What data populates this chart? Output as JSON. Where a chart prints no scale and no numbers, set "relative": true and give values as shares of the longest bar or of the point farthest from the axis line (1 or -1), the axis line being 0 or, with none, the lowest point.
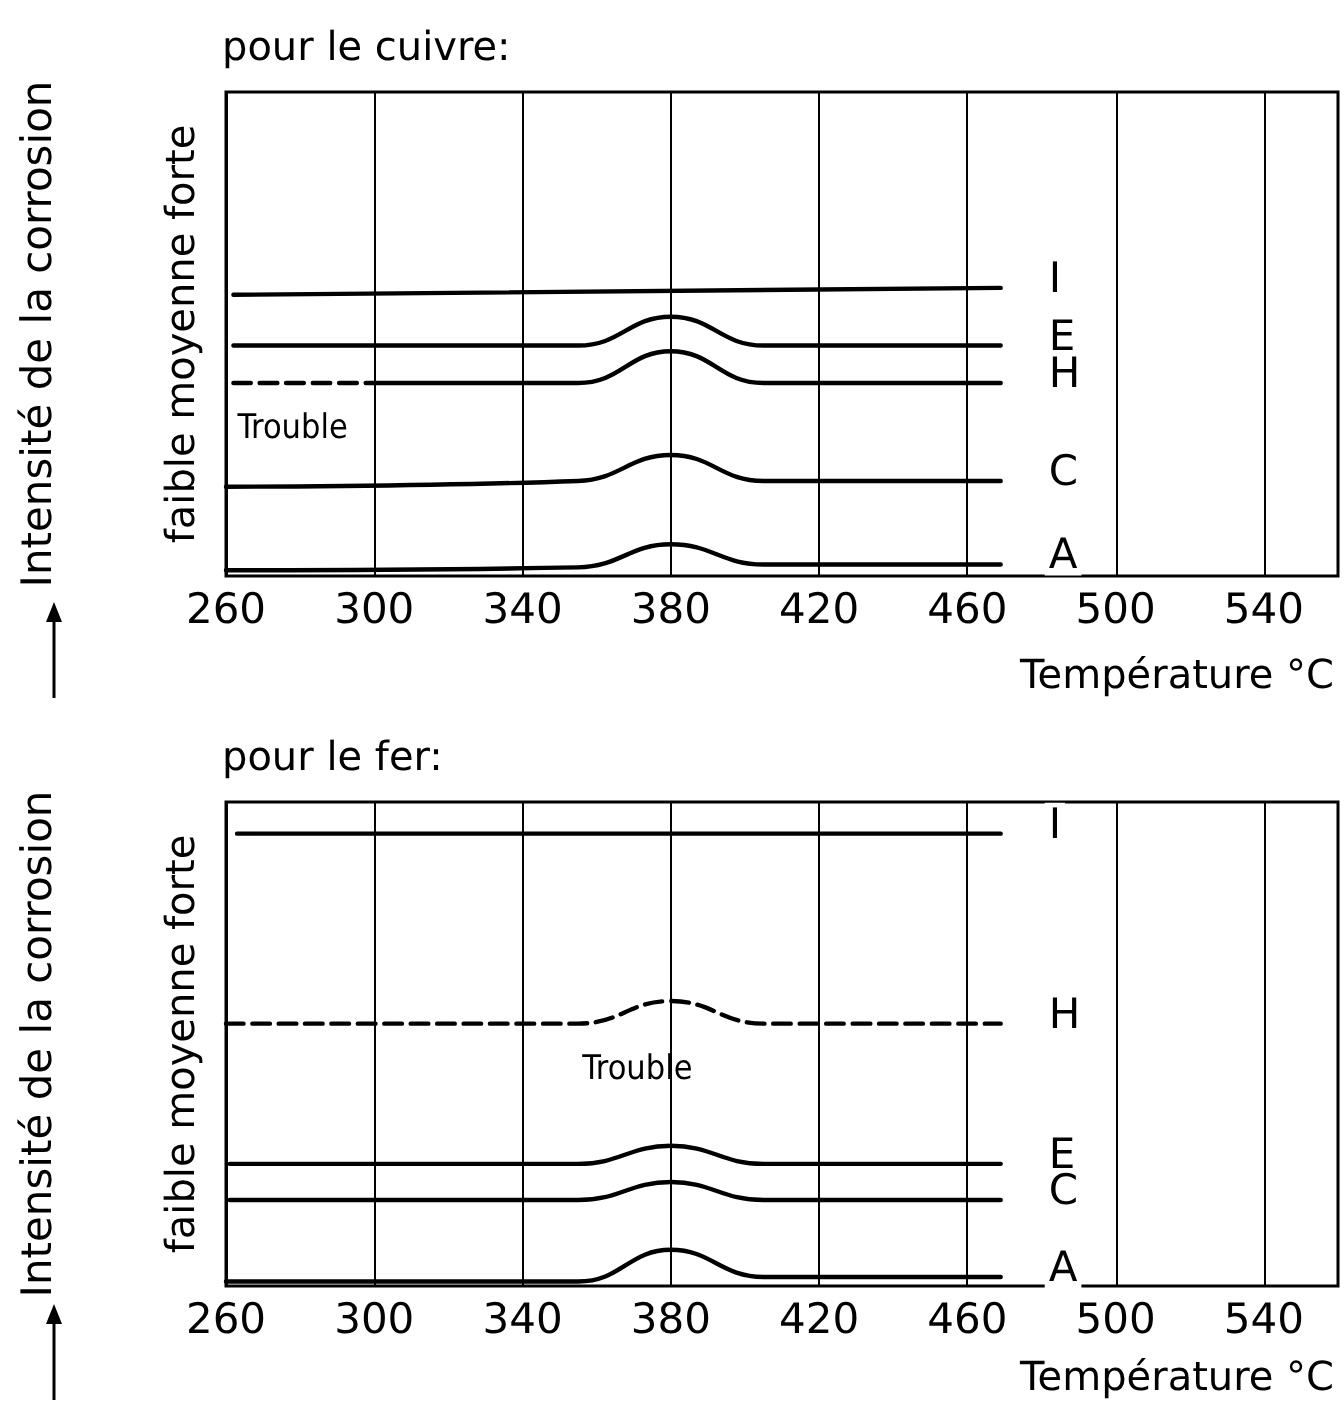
{
  "chart_data": [
    {
      "type": "line",
      "title": "pour le cuivre:",
      "xlabel": "Température °C",
      "ylabel": "Intensité de la corrosion",
      "relative": true,
      "xlim": [
        260,
        560
      ],
      "xticks": [
        260,
        300,
        340,
        380,
        420,
        460,
        500,
        540
      ],
      "grid": "x",
      "legend": false,
      "marker": "none",
      "annotations": [
        "faible moyenne forte",
        "Trouble"
      ],
      "series": [
        {
          "name": "I",
          "color": "#000000",
          "x": [
            262,
            469
          ],
          "values": [
            0.976,
            1
          ]
        },
        {
          "name": "E",
          "color": "#000000",
          "x": [
            262,
            355,
            380,
            405,
            469
          ],
          "values": [
            0.8,
            0.8,
            0.9,
            0.8,
            0.8
          ]
        },
        {
          "color": "#000000",
          "line_style": "dashed",
          "x": [
            262,
            300
          ],
          "values": [
            0.67,
            0.67
          ]
        },
        {
          "name": "H",
          "color": "#000000",
          "x": [
            300,
            355,
            380,
            405,
            469
          ],
          "values": [
            0.67,
            0.67,
            0.78,
            0.67,
            0.67
          ]
        },
        {
          "name": "C",
          "color": "#000000",
          "x": [
            260,
            355,
            380,
            405,
            469
          ],
          "values": [
            0.31,
            0.33,
            0.42,
            0.33,
            0.33
          ]
        },
        {
          "name": "A",
          "color": "#000000",
          "x": [
            260,
            355,
            380,
            405,
            469
          ],
          "values": [
            0.02,
            0.03,
            0.11,
            0.04,
            0.04
          ]
        }
      ]
    },
    {
      "type": "line",
      "title": "pour le fer:",
      "xlabel": "Température °C",
      "ylabel": "Intensité de la corrosion",
      "relative": true,
      "xlim": [
        260,
        560
      ],
      "xticks": [
        260,
        300,
        340,
        380,
        420,
        460,
        500,
        540
      ],
      "grid": "x",
      "legend": false,
      "marker": "none",
      "annotations": [
        "faible moyenne forte",
        "Trouble"
      ],
      "series": [
        {
          "name": "I",
          "color": "#000000",
          "x": [
            263,
            469
          ],
          "values": [
            1,
            1
          ]
        },
        {
          "name": "H",
          "color": "#000000",
          "line_style": "dashed",
          "x": [
            260,
            355,
            380,
            405,
            469
          ],
          "values": [
            0.58,
            0.58,
            0.63,
            0.58,
            0.58
          ]
        },
        {
          "name": "E",
          "color": "#000000",
          "x": [
            261,
            355,
            380,
            405,
            469
          ],
          "values": [
            0.27,
            0.27,
            0.31,
            0.27,
            0.27
          ]
        },
        {
          "name": "C",
          "color": "#000000",
          "x": [
            261,
            355,
            380,
            405,
            469
          ],
          "values": [
            0.19,
            0.19,
            0.23,
            0.19,
            0.19
          ]
        },
        {
          "name": "A",
          "color": "#000000",
          "x": [
            260,
            355,
            380,
            405,
            469
          ],
          "values": [
            0.01,
            0.01,
            0.08,
            0.02,
            0.02
          ]
        }
      ]
    }
  ]
}
